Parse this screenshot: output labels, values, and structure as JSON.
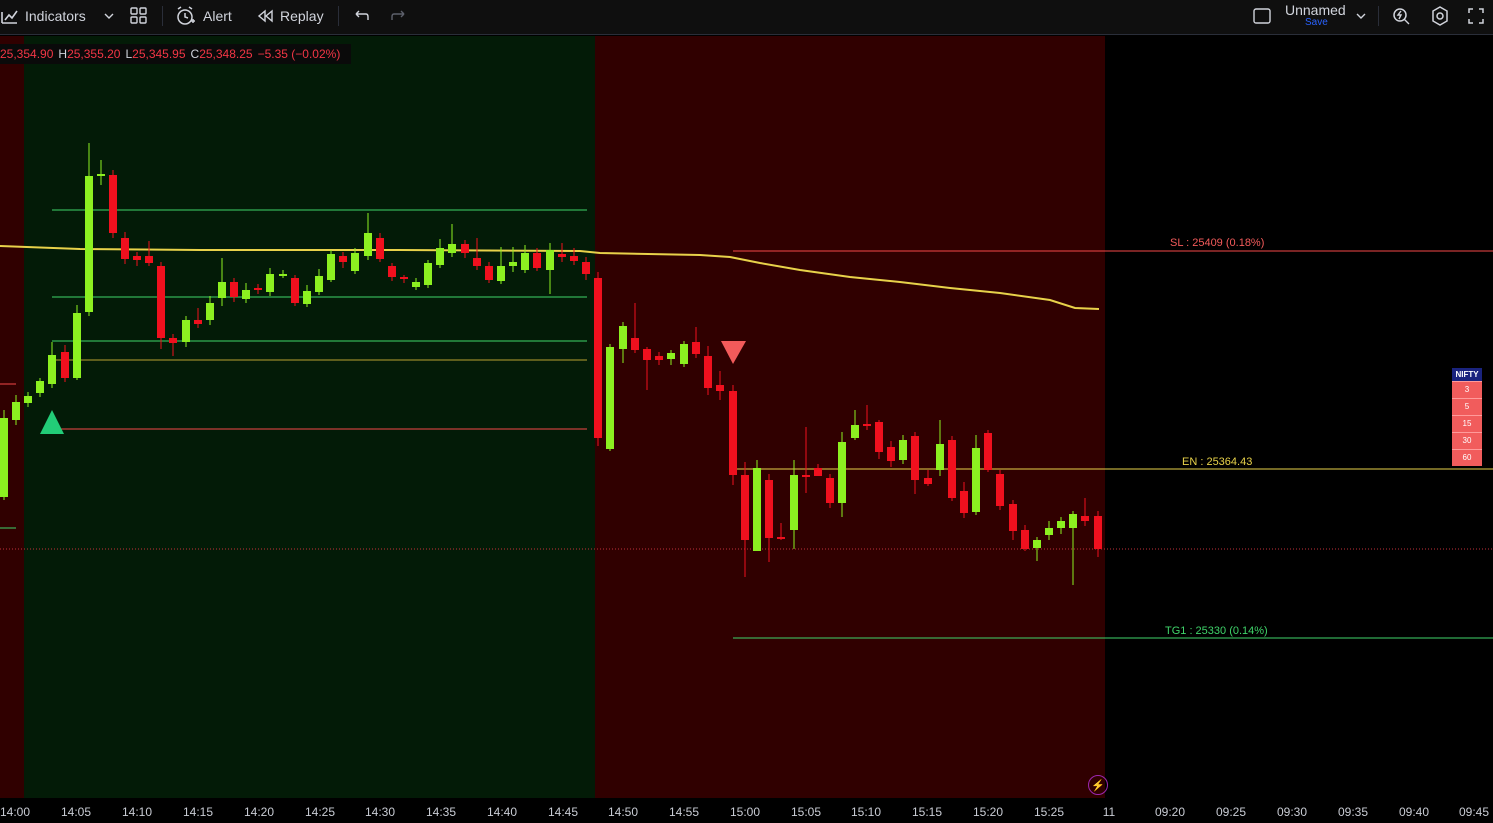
{
  "toolbar": {
    "indicators_label": "Indicators",
    "alert_label": "Alert",
    "replay_label": "Replay",
    "layout_name": "Unnamed",
    "save_label": "Save"
  },
  "legend": {
    "open": "25,354.90",
    "high_label": "H",
    "high": "25,355.20",
    "low_label": "L",
    "low": "25,345.95",
    "close_label": "C",
    "close": "25,348.25",
    "change": "−5.35 (−0.02%)"
  },
  "levels": {
    "sl_label": "SL : 25409 (0.18%)",
    "en_label": "EN : 25364.43",
    "tg1_label": "TG1 : 25330 (0.14%)"
  },
  "timeframes": {
    "symbol": "NIFTY",
    "items": [
      "3",
      "5",
      "15",
      "30",
      "60"
    ]
  },
  "xaxis_labels": [
    "14:00",
    "14:05",
    "14:10",
    "14:15",
    "14:20",
    "14:25",
    "14:30",
    "14:35",
    "14:40",
    "14:45",
    "14:50",
    "14:55",
    "15:00",
    "15:05",
    "15:10",
    "15:15",
    "15:20",
    "15:25",
    "11",
    "09:20",
    "09:25",
    "09:30",
    "09:35",
    "09:40",
    "09:45"
  ],
  "colors": {
    "bull": "#8cf020",
    "bear": "#f0101e",
    "bull_zone": "#031b07",
    "bear_zone": "#300000",
    "ma_line": "#e8d24a",
    "sl_line": "#f44848",
    "en_line": "#e8d24a",
    "tg_line": "#3fd46a"
  }
}
